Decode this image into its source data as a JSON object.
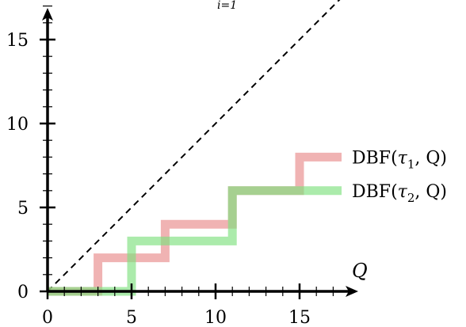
{
  "chart_data": {
    "type": "line",
    "title": "",
    "top_label": "i=1",
    "xlabel": "Q",
    "ylabel": "",
    "xlim": [
      0,
      17.7
    ],
    "ylim": [
      0,
      17
    ],
    "x_ticks": [
      0,
      5,
      10,
      15
    ],
    "y_ticks": [
      0,
      5,
      10,
      15
    ],
    "x_tick_labels": [
      "0",
      "5",
      "10",
      "15"
    ],
    "y_tick_labels": [
      "0",
      "5",
      "10",
      "15"
    ],
    "grid": false,
    "legend": "right",
    "reference_line": {
      "style": "dashed",
      "slope": 1,
      "x": [
        0,
        17.7
      ],
      "y": [
        0,
        17.7
      ]
    },
    "series": [
      {
        "name": "DBF(τ1, Q)",
        "label_main": "DBF(",
        "label_sym": "τ",
        "label_sub": "1",
        "label_tail": ", Q)",
        "color": "#e88a8a",
        "x": [
          0,
          3,
          3,
          7,
          7,
          11,
          11,
          15,
          15,
          17.5
        ],
        "y": [
          0,
          0,
          2,
          2,
          4,
          4,
          6,
          6,
          8,
          8
        ]
      },
      {
        "name": "DBF(τ2, Q)",
        "label_main": "DBF(",
        "label_sym": "τ",
        "label_sub": "2",
        "label_tail": ", Q)",
        "color": "#7ee07e",
        "x": [
          0,
          5,
          5,
          11,
          11,
          17.5
        ],
        "y": [
          0,
          0,
          3,
          3,
          6,
          6
        ]
      }
    ]
  }
}
